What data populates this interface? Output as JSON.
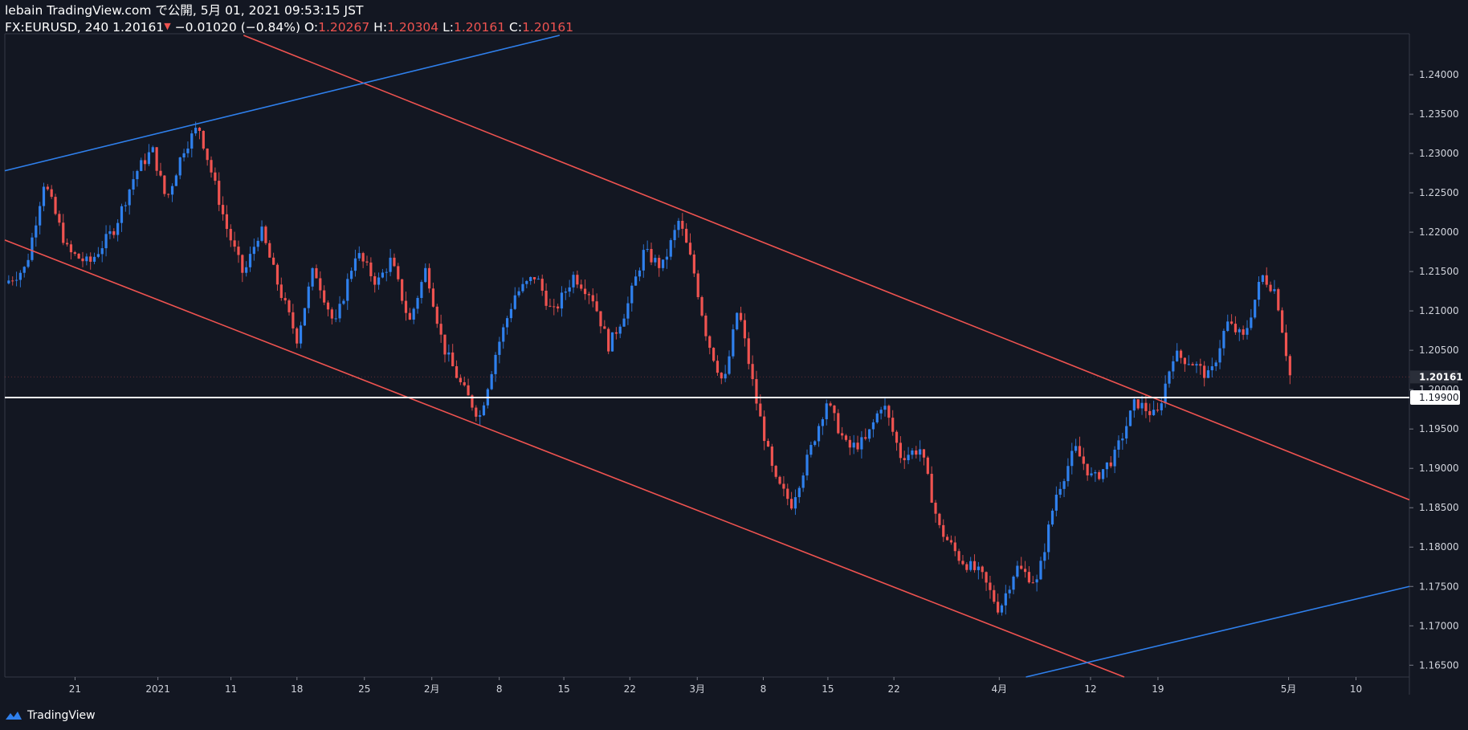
{
  "header": {
    "line1": "lebain TradingView.com で公開, 5月 01, 2021 09:53:15 JST",
    "symbol": "FX:EURUSD, 240",
    "last": "1.20161",
    "change": "−0.01020 (−0.84%)",
    "o_label": "O:",
    "o_value": "1.20267",
    "h_label": "H:",
    "h_value": "1.20304",
    "l_label": "L:",
    "l_value": "1.20161",
    "c_label": "C:",
    "c_value": "1.20161"
  },
  "brand": {
    "name": "TradingView"
  },
  "colors": {
    "background": "#131722",
    "up": "#2962ff",
    "up_bright": "#2f80ed",
    "down": "#ef5350",
    "axis_text": "#d1d4dc",
    "channel_line": "#ef5350",
    "trend_line": "#2f80ed",
    "hline": "#ffffff"
  },
  "chart_data": {
    "type": "candlestick",
    "symbol": "FX:EURUSD",
    "interval": "240",
    "ylim": [
      1.1635,
      1.245
    ],
    "yticks": [
      "1.24000",
      "1.23500",
      "1.23000",
      "1.22500",
      "1.22000",
      "1.21500",
      "1.21000",
      "1.20500",
      "1.20000",
      "1.19500",
      "1.19000",
      "1.18500",
      "1.18000",
      "1.17500",
      "1.17000",
      "1.16500"
    ],
    "yticks_values": [
      1.24,
      1.235,
      1.23,
      1.225,
      1.22,
      1.215,
      1.21,
      1.205,
      1.2,
      1.195,
      1.19,
      1.185,
      1.18,
      1.175,
      1.17,
      1.165
    ],
    "xticks": [
      {
        "label": "21",
        "t": 0.05
      },
      {
        "label": "2021",
        "t": 0.109
      },
      {
        "label": "11",
        "t": 0.161
      },
      {
        "label": "18",
        "t": 0.208
      },
      {
        "label": "25",
        "t": 0.256
      },
      {
        "label": "2月",
        "t": 0.304
      },
      {
        "label": "8",
        "t": 0.352
      },
      {
        "label": "15",
        "t": 0.398
      },
      {
        "label": "22",
        "t": 0.445
      },
      {
        "label": "3月",
        "t": 0.493
      },
      {
        "label": "8",
        "t": 0.54
      },
      {
        "label": "15",
        "t": 0.586
      },
      {
        "label": "22",
        "t": 0.633
      },
      {
        "label": "4月",
        "t": 0.708
      },
      {
        "label": "12",
        "t": 0.773
      },
      {
        "label": "19",
        "t": 0.821
      },
      {
        "label": "5月",
        "t": 0.914
      },
      {
        "label": "10",
        "t": 0.962
      }
    ],
    "price_path": [
      [
        0.0,
        1.2135
      ],
      [
        0.015,
        1.2155
      ],
      [
        0.028,
        1.2265
      ],
      [
        0.045,
        1.2175
      ],
      [
        0.06,
        1.216
      ],
      [
        0.078,
        1.2205
      ],
      [
        0.093,
        1.2275
      ],
      [
        0.105,
        1.2305
      ],
      [
        0.115,
        1.224
      ],
      [
        0.127,
        1.2305
      ],
      [
        0.138,
        1.2335
      ],
      [
        0.148,
        1.227
      ],
      [
        0.158,
        1.2205
      ],
      [
        0.17,
        1.2145
      ],
      [
        0.182,
        1.2205
      ],
      [
        0.195,
        1.213
      ],
      [
        0.208,
        1.2065
      ],
      [
        0.22,
        1.2155
      ],
      [
        0.235,
        1.208
      ],
      [
        0.25,
        1.2175
      ],
      [
        0.265,
        1.2135
      ],
      [
        0.275,
        1.2165
      ],
      [
        0.288,
        1.2085
      ],
      [
        0.3,
        1.2155
      ],
      [
        0.312,
        1.2055
      ],
      [
        0.325,
        1.2005
      ],
      [
        0.338,
        1.1965
      ],
      [
        0.35,
        1.205
      ],
      [
        0.363,
        1.212
      ],
      [
        0.378,
        1.2145
      ],
      [
        0.39,
        1.2095
      ],
      [
        0.405,
        1.2145
      ],
      [
        0.418,
        1.212
      ],
      [
        0.43,
        1.2055
      ],
      [
        0.443,
        1.2105
      ],
      [
        0.455,
        1.2175
      ],
      [
        0.468,
        1.2155
      ],
      [
        0.48,
        1.2215
      ],
      [
        0.49,
        1.2155
      ],
      [
        0.5,
        1.2065
      ],
      [
        0.512,
        1.2005
      ],
      [
        0.522,
        1.2105
      ],
      [
        0.535,
        1.1985
      ],
      [
        0.548,
        1.1885
      ],
      [
        0.56,
        1.1855
      ],
      [
        0.572,
        1.1915
      ],
      [
        0.585,
        1.1985
      ],
      [
        0.6,
        1.1925
      ],
      [
        0.613,
        1.1935
      ],
      [
        0.625,
        1.1985
      ],
      [
        0.638,
        1.1915
      ],
      [
        0.652,
        1.1925
      ],
      [
        0.665,
        1.1825
      ],
      [
        0.68,
        1.1785
      ],
      [
        0.695,
        1.1765
      ],
      [
        0.708,
        1.172
      ],
      [
        0.72,
        1.1775
      ],
      [
        0.735,
        1.1755
      ],
      [
        0.748,
        1.1865
      ],
      [
        0.762,
        1.1925
      ],
      [
        0.775,
        1.1885
      ],
      [
        0.79,
        1.1915
      ],
      [
        0.805,
        1.1985
      ],
      [
        0.82,
        1.1965
      ],
      [
        0.832,
        1.2045
      ],
      [
        0.845,
        1.2035
      ],
      [
        0.858,
        1.2015
      ],
      [
        0.87,
        1.2085
      ],
      [
        0.882,
        1.2065
      ],
      [
        0.895,
        1.2145
      ],
      [
        0.905,
        1.2125
      ],
      [
        0.915,
        1.2018
      ]
    ],
    "annotations": {
      "horizontal_line": {
        "price": 1.199,
        "label": "1.19900"
      },
      "last_price_label": "1.20161",
      "last_price": 1.20161,
      "channel_upper": {
        "p1": [
          0.17,
          1.245
        ],
        "p2": [
          1.0,
          1.186
        ]
      },
      "channel_lower": {
        "p1": [
          0.0,
          1.219
        ],
        "p2": [
          0.797,
          1.1635
        ]
      },
      "trend_upper": {
        "p1": [
          0.0,
          1.2278
        ],
        "p2": [
          0.395,
          1.245
        ]
      },
      "trend_lower": {
        "p1": [
          0.727,
          1.1635
        ],
        "p2": [
          1.0,
          1.175
        ]
      }
    }
  }
}
